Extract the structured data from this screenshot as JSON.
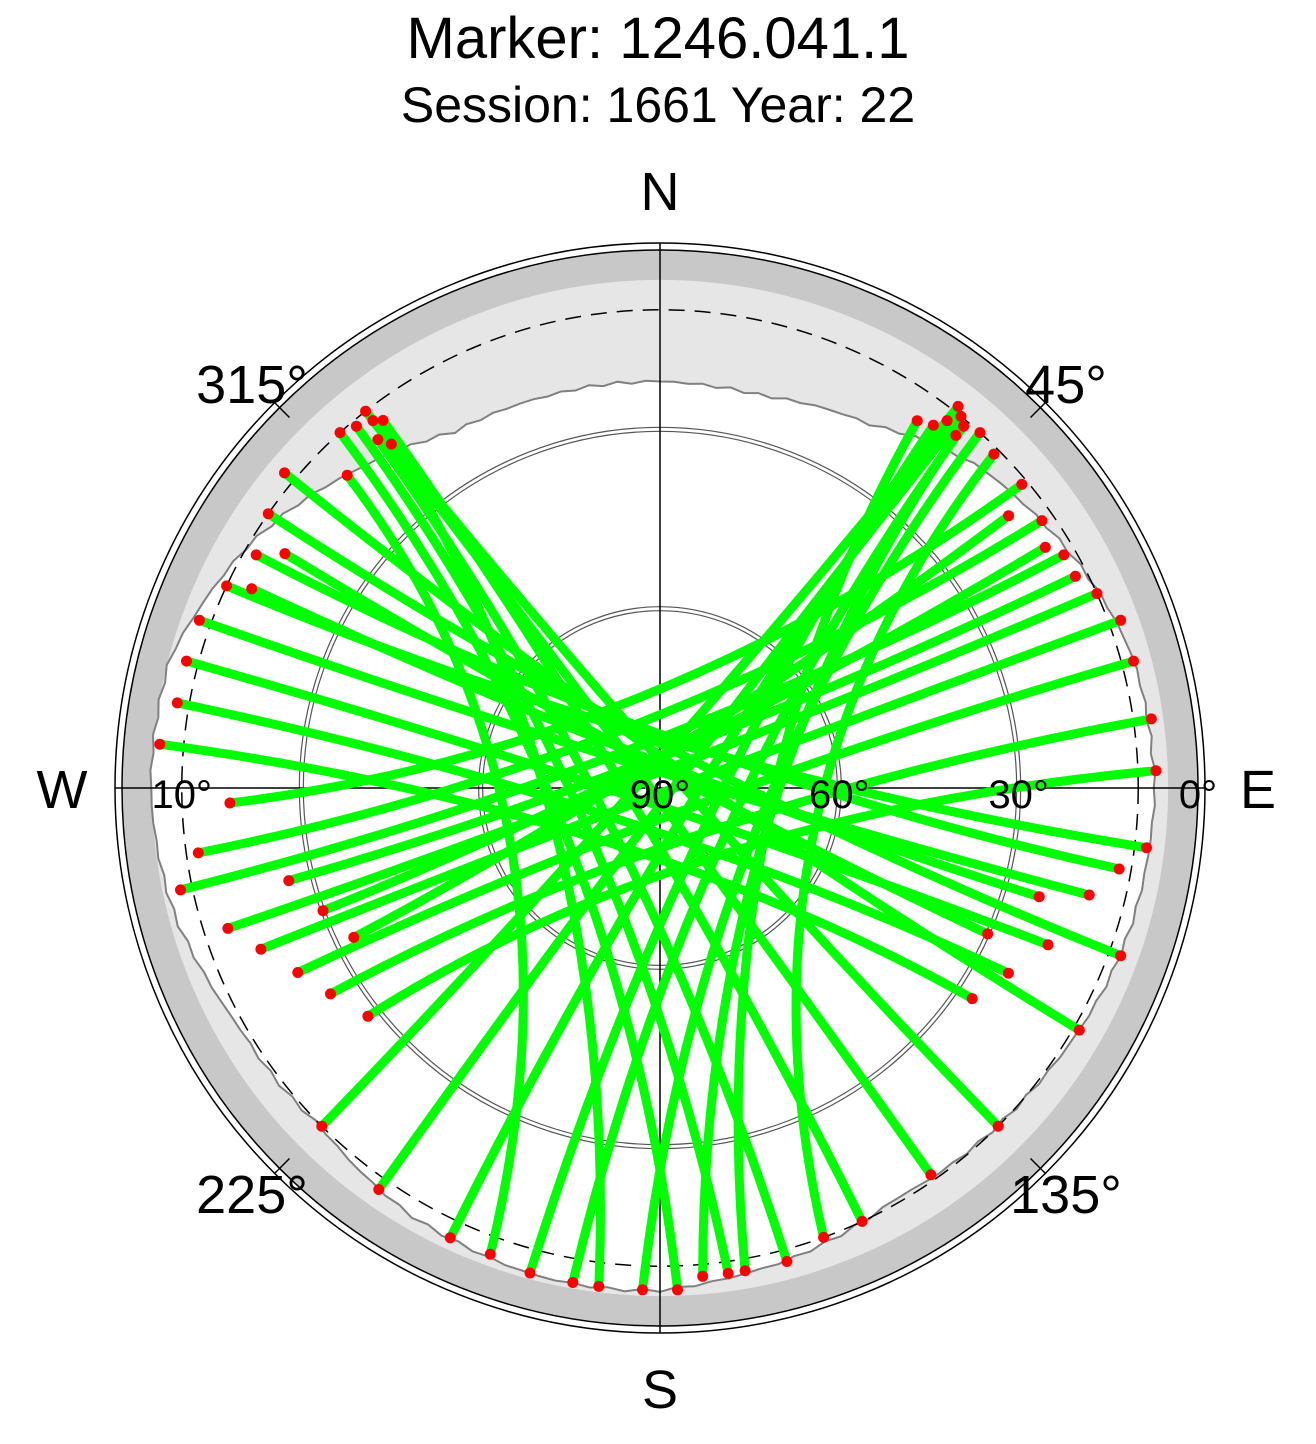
{
  "title": "Marker: 1246.041.1",
  "subtitle": "Session: 1661 Year: 22",
  "chart_data": {
    "type": "polar-skyplot",
    "projection": "azimuth-elevation",
    "compass_labels": {
      "north": "N",
      "east": "E",
      "south": "S",
      "west": "W"
    },
    "azimuth_labels": [
      {
        "azimuth": 45,
        "label": "45°"
      },
      {
        "azimuth": 135,
        "label": "135°"
      },
      {
        "azimuth": 225,
        "label": "225°"
      },
      {
        "azimuth": 315,
        "label": "315°"
      }
    ],
    "elevation_labels": [
      {
        "elevation": 0,
        "label": "0°"
      },
      {
        "elevation": 30,
        "label": "30°"
      },
      {
        "elevation": 60,
        "label": "60°"
      },
      {
        "elevation": 90,
        "label": "90°"
      },
      {
        "elevation": 10,
        "label": "10°",
        "side": "west"
      }
    ],
    "elevation_circles": [
      30,
      60
    ],
    "elevation_mask_dashed": 10,
    "horizon_mask": [
      [
        0,
        22
      ],
      [
        15,
        22
      ],
      [
        30,
        20
      ],
      [
        45,
        14
      ],
      [
        60,
        11
      ],
      [
        75,
        8
      ],
      [
        90,
        7
      ],
      [
        105,
        8
      ],
      [
        120,
        9
      ],
      [
        135,
        10
      ],
      [
        150,
        11
      ],
      [
        165,
        8
      ],
      [
        180,
        6
      ],
      [
        195,
        6
      ],
      [
        210,
        7
      ],
      [
        225,
        10
      ],
      [
        240,
        9
      ],
      [
        255,
        6
      ],
      [
        270,
        5
      ],
      [
        285,
        5
      ],
      [
        300,
        10
      ],
      [
        315,
        16
      ],
      [
        330,
        21
      ],
      [
        345,
        22
      ],
      [
        360,
        22
      ]
    ],
    "colors": {
      "track": "#00ff00",
      "track_end": "#ff0000",
      "mask_outer": "#c8c8c8",
      "mask_inner": "#e6e6e6",
      "obstruction_line": "#808080"
    },
    "tracks": [
      {
        "start": [
          38,
          9
        ],
        "end": [
          225,
          10
        ]
      },
      {
        "start": [
          39,
          10
        ],
        "end": [
          215,
          8
        ]
      },
      {
        "start": [
          38,
          12
        ],
        "end": [
          205,
          7
        ]
      },
      {
        "start": [
          37,
          14
        ],
        "end": [
          195,
          6
        ]
      },
      {
        "start": [
          40,
          11
        ],
        "end": [
          190,
          6
        ]
      },
      {
        "start": [
          42,
          10
        ],
        "end": [
          182,
          6
        ]
      },
      {
        "start": [
          40,
          13
        ],
        "end": [
          175,
          8
        ]
      },
      {
        "start": [
          35,
          15
        ],
        "end": [
          170,
          8
        ]
      },
      {
        "start": [
          45,
          11
        ],
        "end": [
          160,
          10
        ]
      },
      {
        "start": [
          50,
          11
        ],
        "end": [
          268,
          18
        ]
      },
      {
        "start": [
          55,
          12
        ],
        "end": [
          262,
          12
        ]
      },
      {
        "start": [
          60,
          12
        ],
        "end": [
          258,
          8
        ]
      },
      {
        "start": [
          66,
          10
        ],
        "end": [
          252,
          14
        ]
      },
      {
        "start": [
          70,
          8
        ],
        "end": [
          248,
          18
        ]
      },
      {
        "start": [
          75,
          8
        ],
        "end": [
          243,
          22
        ]
      },
      {
        "start": [
          82,
          7
        ],
        "end": [
          238,
          25
        ]
      },
      {
        "start": [
          88,
          7
        ],
        "end": [
          232,
          28
        ]
      },
      {
        "start": [
          63,
          12
        ],
        "end": [
          256,
          26
        ]
      },
      {
        "start": [
          58,
          14
        ],
        "end": [
          250,
          30
        ]
      },
      {
        "start": [
          52,
          16
        ],
        "end": [
          244,
          33
        ]
      },
      {
        "start": [
          322,
          10
        ],
        "end": [
          135,
          10
        ]
      },
      {
        "start": [
          322,
          12
        ],
        "end": [
          145,
          11
        ]
      },
      {
        "start": [
          323,
          13
        ],
        "end": [
          155,
          10
        ]
      },
      {
        "start": [
          321,
          15
        ],
        "end": [
          165,
          8
        ]
      },
      {
        "start": [
          320,
          11
        ],
        "end": [
          172,
          8
        ]
      },
      {
        "start": [
          318,
          10
        ],
        "end": [
          178,
          6
        ]
      },
      {
        "start": [
          322,
          17
        ],
        "end": [
          187,
          6
        ]
      },
      {
        "start": [
          315,
          16
        ],
        "end": [
          200,
          7
        ]
      },
      {
        "start": [
          310,
          8
        ],
        "end": [
          120,
          9
        ]
      },
      {
        "start": [
          305,
          10
        ],
        "end": [
          110,
          8
        ]
      },
      {
        "start": [
          300,
          12
        ],
        "end": [
          100,
          12
        ]
      },
      {
        "start": [
          295,
          10
        ],
        "end": [
          97,
          8
        ]
      },
      {
        "start": [
          290,
          8
        ],
        "end": [
          104,
          16
        ]
      },
      {
        "start": [
          285,
          8
        ],
        "end": [
          112,
          20
        ]
      },
      {
        "start": [
          280,
          8
        ],
        "end": [
          118,
          24
        ]
      },
      {
        "start": [
          275,
          6
        ],
        "end": [
          124,
          27
        ]
      },
      {
        "start": [
          296,
          14
        ],
        "end": [
          106,
          24
        ]
      },
      {
        "start": [
          302,
          16
        ],
        "end": [
          114,
          30
        ]
      }
    ]
  }
}
